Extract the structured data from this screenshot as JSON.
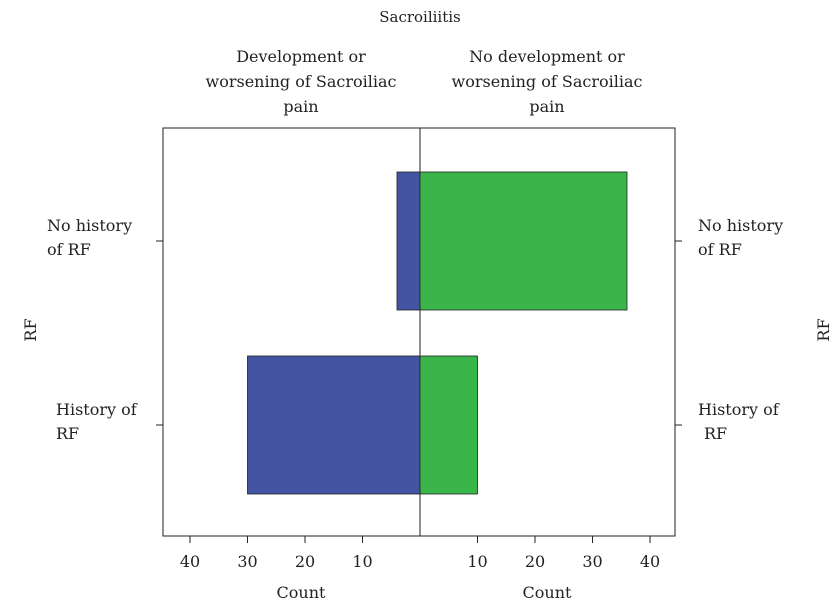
{
  "chart_data": {
    "type": "bar",
    "title": "Sacroiliitis",
    "panels": [
      "Development or worsening of Sacroiliac pain",
      "No development or worsening of Sacroiliac pain"
    ],
    "panel_label_lines": [
      [
        "Development or",
        "worsening of Sacroiliac",
        "pain"
      ],
      [
        "No development or",
        "worsening of Sacroiliac",
        "pain"
      ]
    ],
    "categories": [
      "No history of RF",
      "History of RF"
    ],
    "category_label_lines": {
      "left": [
        [
          "No history",
          "of RF"
        ],
        [
          "History of",
          "RF"
        ]
      ],
      "right": [
        [
          "No history",
          "of RF"
        ],
        [
          "History of",
          "RF"
        ]
      ]
    },
    "series": [
      {
        "name": "Development or worsening of Sacroiliac pain",
        "values": [
          4,
          30
        ],
        "color": "#4454a3"
      },
      {
        "name": "No development or worsening of Sacroiliac pain",
        "values": [
          36,
          10
        ],
        "color": "#3ab54a"
      }
    ],
    "xlabel": "Count",
    "ylabel": "RF",
    "xticks": [
      40,
      30,
      20,
      10
    ],
    "xlim": [
      0,
      45
    ],
    "grid": false
  }
}
